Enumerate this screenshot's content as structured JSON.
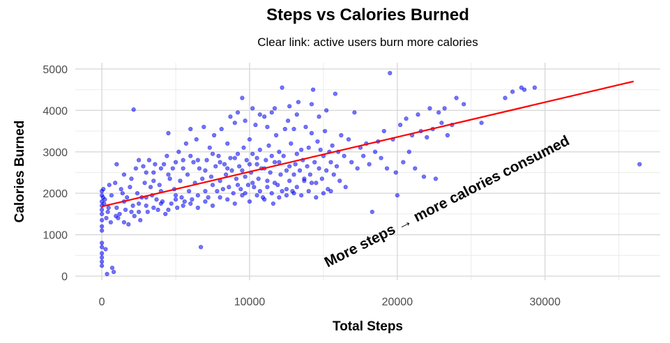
{
  "chart_data": {
    "type": "scatter",
    "title": "Steps vs Calories Burned",
    "subtitle": "Clear link: active users burn more calories",
    "xlabel": "Total Steps",
    "ylabel": "Calories Burned",
    "xlim": [
      -1800,
      37800
    ],
    "ylim": [
      -100,
      5150
    ],
    "x_ticks": [
      0,
      10000,
      20000,
      30000
    ],
    "y_ticks": [
      0,
      1000,
      2000,
      3000,
      4000,
      5000
    ],
    "x_tick_labels": [
      "0",
      "10000",
      "20000",
      "30000"
    ],
    "y_tick_labels": [
      "0",
      "1000",
      "2000",
      "3000",
      "4000",
      "5000"
    ],
    "grid": true,
    "legend": "none",
    "point_color": "#0000ff",
    "trend_color": "#ff0000",
    "trend_line": {
      "type": "linear",
      "points": [
        [
          0,
          1680
        ],
        [
          36000,
          4700
        ]
      ]
    },
    "annotation": {
      "text": "More steps → more calories consumed",
      "x": 23500,
      "y": 1700,
      "angle": -27
    },
    "points": [
      [
        0,
        1800
      ],
      [
        0,
        2050
      ],
      [
        0,
        1950
      ],
      [
        0,
        1700
      ],
      [
        0,
        1600
      ],
      [
        0,
        1500
      ],
      [
        0,
        1350
      ],
      [
        0,
        1200
      ],
      [
        0,
        1100
      ],
      [
        0,
        800
      ],
      [
        0,
        700
      ],
      [
        0,
        550
      ],
      [
        0,
        450
      ],
      [
        0,
        350
      ],
      [
        0,
        250
      ],
      [
        80,
        1900
      ],
      [
        100,
        2100
      ],
      [
        150,
        1750
      ],
      [
        200,
        1850
      ],
      [
        250,
        650
      ],
      [
        300,
        1400
      ],
      [
        400,
        1550
      ],
      [
        500,
        2200
      ],
      [
        450,
        1650
      ],
      [
        350,
        50
      ],
      [
        600,
        1300
      ],
      [
        700,
        200
      ],
      [
        800,
        100
      ],
      [
        650,
        1950
      ],
      [
        900,
        2250
      ],
      [
        950,
        1450
      ],
      [
        1100,
        1400
      ],
      [
        1200,
        1500
      ],
      [
        1300,
        2100
      ],
      [
        1400,
        2000
      ],
      [
        1500,
        1300
      ],
      [
        1600,
        1600
      ],
      [
        1700,
        1900
      ],
      [
        1800,
        1250
      ],
      [
        1900,
        2150
      ],
      [
        2000,
        2350
      ],
      [
        2100,
        1700
      ],
      [
        2200,
        1450
      ],
      [
        2150,
        4020
      ],
      [
        2300,
        2600
      ],
      [
        2400,
        2000
      ],
      [
        2500,
        1550
      ],
      [
        2600,
        1350
      ],
      [
        2700,
        1900
      ],
      [
        2800,
        2650
      ],
      [
        2900,
        2250
      ],
      [
        3000,
        1700
      ],
      [
        3100,
        1550
      ],
      [
        3200,
        2800
      ],
      [
        3300,
        2150
      ],
      [
        3400,
        1950
      ],
      [
        3500,
        2500
      ],
      [
        3600,
        2700
      ],
      [
        3700,
        1850
      ],
      [
        3800,
        1600
      ],
      [
        3900,
        2200
      ],
      [
        4000,
        2050
      ],
      [
        4100,
        1800
      ],
      [
        4200,
        2700
      ],
      [
        4300,
        1500
      ],
      [
        4400,
        2900
      ],
      [
        4500,
        3450
      ],
      [
        4600,
        2350
      ],
      [
        4700,
        1750
      ],
      [
        4800,
        2600
      ],
      [
        4900,
        2100
      ],
      [
        5000,
        1950
      ],
      [
        5100,
        1650
      ],
      [
        5200,
        3000
      ],
      [
        5300,
        2300
      ],
      [
        5400,
        1900
      ],
      [
        5500,
        2800
      ],
      [
        5600,
        1800
      ],
      [
        5700,
        3200
      ],
      [
        5800,
        2450
      ],
      [
        5900,
        2050
      ],
      [
        6000,
        3550
      ],
      [
        6100,
        1850
      ],
      [
        6200,
        2750
      ],
      [
        6300,
        2250
      ],
      [
        6400,
        3300
      ],
      [
        6500,
        1950
      ],
      [
        6600,
        2600
      ],
      [
        6700,
        700
      ],
      [
        6800,
        2350
      ],
      [
        6900,
        3600
      ],
      [
        7000,
        2050
      ],
      [
        7100,
        2800
      ],
      [
        7200,
        1900
      ],
      [
        7300,
        3100
      ],
      [
        7400,
        2400
      ],
      [
        7500,
        2200
      ],
      [
        7600,
        3400
      ],
      [
        7700,
        2650
      ],
      [
        7800,
        2050
      ],
      [
        7900,
        2900
      ],
      [
        8000,
        2300
      ],
      [
        8100,
        3550
      ],
      [
        8200,
        2100
      ],
      [
        8300,
        2700
      ],
      [
        8400,
        2450
      ],
      [
        8500,
        3200
      ],
      [
        8600,
        2150
      ],
      [
        8700,
        2850
      ],
      [
        8800,
        2550
      ],
      [
        8900,
        2000
      ],
      [
        9000,
        3700
      ],
      [
        9100,
        2350
      ],
      [
        9200,
        2950
      ],
      [
        9300,
        2650
      ],
      [
        9400,
        2100
      ],
      [
        9500,
        4300
      ],
      [
        9600,
        3100
      ],
      [
        9700,
        2400
      ],
      [
        9800,
        2800
      ],
      [
        9900,
        2200
      ],
      [
        10000,
        3300
      ],
      [
        10100,
        2500
      ],
      [
        10200,
        2950
      ],
      [
        10300,
        2150
      ],
      [
        10400,
        3650
      ],
      [
        10500,
        2700
      ],
      [
        10600,
        2350
      ],
      [
        10700,
        3050
      ],
      [
        10800,
        2600
      ],
      [
        10900,
        1900
      ],
      [
        11000,
        3850
      ],
      [
        11100,
        2800
      ],
      [
        11200,
        2300
      ],
      [
        11300,
        3150
      ],
      [
        11400,
        2500
      ],
      [
        11500,
        3950
      ],
      [
        11600,
        1750
      ],
      [
        11700,
        2750
      ],
      [
        11800,
        3400
      ],
      [
        11900,
        2200
      ],
      [
        12000,
        3000
      ],
      [
        12100,
        2450
      ],
      [
        12200,
        4550
      ],
      [
        12300,
        2900
      ],
      [
        12400,
        3550
      ],
      [
        12500,
        2100
      ],
      [
        12600,
        3750
      ],
      [
        12700,
        2650
      ],
      [
        12800,
        3200
      ],
      [
        12900,
        2050
      ],
      [
        13000,
        3550
      ],
      [
        13100,
        2700
      ],
      [
        13200,
        2950
      ],
      [
        13300,
        4200
      ],
      [
        13400,
        2550
      ],
      [
        13500,
        3050
      ],
      [
        13600,
        2800
      ],
      [
        13700,
        2300
      ],
      [
        13800,
        3600
      ],
      [
        13900,
        2650
      ],
      [
        14000,
        3100
      ],
      [
        14100,
        2450
      ],
      [
        14200,
        3450
      ],
      [
        14300,
        4500
      ],
      [
        14400,
        2750
      ],
      [
        14500,
        2250
      ],
      [
        14600,
        3250
      ],
      [
        14700,
        2600
      ],
      [
        14800,
        3050
      ],
      [
        14900,
        2350
      ],
      [
        15000,
        2900
      ],
      [
        15100,
        3500
      ],
      [
        15200,
        2550
      ],
      [
        15300,
        2100
      ],
      [
        15400,
        3000
      ],
      [
        15500,
        2750
      ],
      [
        15600,
        3150
      ],
      [
        15700,
        2450
      ],
      [
        15800,
        4400
      ],
      [
        15900,
        2650
      ],
      [
        16000,
        3000
      ],
      [
        16100,
        2300
      ],
      [
        16200,
        3400
      ],
      [
        16400,
        2900
      ],
      [
        16500,
        2150
      ],
      [
        16700,
        3300
      ],
      [
        16900,
        2750
      ],
      [
        17100,
        3950
      ],
      [
        17300,
        2600
      ],
      [
        17500,
        3100
      ],
      [
        17700,
        2900
      ],
      [
        17900,
        3200
      ],
      [
        18100,
        2700
      ],
      [
        18300,
        1550
      ],
      [
        18500,
        3000
      ],
      [
        18700,
        3250
      ],
      [
        18900,
        2850
      ],
      [
        19100,
        3500
      ],
      [
        19300,
        2600
      ],
      [
        19500,
        4900
      ],
      [
        19700,
        3300
      ],
      [
        19900,
        2500
      ],
      [
        20000,
        1950
      ],
      [
        20200,
        3650
      ],
      [
        20400,
        2750
      ],
      [
        20600,
        3800
      ],
      [
        20800,
        3000
      ],
      [
        21000,
        3400
      ],
      [
        21200,
        2600
      ],
      [
        21400,
        3900
      ],
      [
        21600,
        3500
      ],
      [
        21800,
        2400
      ],
      [
        22000,
        3350
      ],
      [
        22200,
        4050
      ],
      [
        22400,
        3550
      ],
      [
        22600,
        2350
      ],
      [
        22800,
        3950
      ],
      [
        23000,
        3700
      ],
      [
        23200,
        4050
      ],
      [
        23400,
        3400
      ],
      [
        23700,
        3650
      ],
      [
        24000,
        4300
      ],
      [
        24500,
        4150
      ],
      [
        25700,
        3700
      ],
      [
        27300,
        4300
      ],
      [
        27800,
        4450
      ],
      [
        28400,
        4550
      ],
      [
        28600,
        4500
      ],
      [
        29300,
        4550
      ],
      [
        36400,
        2700
      ],
      [
        1000,
        2700
      ],
      [
        1500,
        2450
      ],
      [
        2500,
        2800
      ],
      [
        3000,
        2500
      ],
      [
        3500,
        2300
      ],
      [
        4000,
        2600
      ],
      [
        4500,
        2450
      ],
      [
        5000,
        2750
      ],
      [
        5500,
        2600
      ],
      [
        6000,
        2900
      ],
      [
        6500,
        2800
      ],
      [
        7000,
        2550
      ],
      [
        7500,
        2950
      ],
      [
        8000,
        2750
      ],
      [
        8500,
        2600
      ],
      [
        9000,
        2850
      ],
      [
        9500,
        2550
      ],
      [
        10000,
        2700
      ],
      [
        10500,
        2850
      ],
      [
        11000,
        2600
      ],
      [
        11500,
        2900
      ],
      [
        12000,
        2750
      ],
      [
        12500,
        2550
      ],
      [
        13000,
        2450
      ],
      [
        1000,
        1650
      ],
      [
        1500,
        1800
      ],
      [
        2000,
        1550
      ],
      [
        2500,
        1750
      ],
      [
        3000,
        1900
      ],
      [
        3500,
        1650
      ],
      [
        4000,
        1750
      ],
      [
        4500,
        1600
      ],
      [
        5000,
        1850
      ],
      [
        5500,
        1700
      ],
      [
        6000,
        1750
      ],
      [
        6500,
        1650
      ],
      [
        7000,
        1800
      ],
      [
        7500,
        1700
      ],
      [
        8000,
        1900
      ],
      [
        8500,
        1850
      ],
      [
        9000,
        1750
      ],
      [
        9500,
        1950
      ],
      [
        10000,
        1800
      ],
      [
        10500,
        1950
      ],
      [
        11000,
        1850
      ],
      [
        11500,
        2000
      ],
      [
        12000,
        1900
      ],
      [
        12500,
        1950
      ],
      [
        13000,
        2000
      ],
      [
        13500,
        1950
      ],
      [
        14000,
        2050
      ],
      [
        14500,
        1900
      ],
      [
        15000,
        2000
      ],
      [
        15500,
        2050
      ],
      [
        9200,
        2200
      ],
      [
        9700,
        2000
      ],
      [
        10200,
        2250
      ],
      [
        10700,
        2050
      ],
      [
        11200,
        2150
      ],
      [
        11700,
        2250
      ],
      [
        12200,
        2050
      ],
      [
        12700,
        2300
      ],
      [
        13200,
        2150
      ],
      [
        13700,
        2350
      ],
      [
        14200,
        2250
      ],
      [
        8700,
        3850
      ],
      [
        9200,
        3950
      ],
      [
        9700,
        3750
      ],
      [
        10200,
        4050
      ],
      [
        10700,
        3900
      ],
      [
        11200,
        3600
      ],
      [
        11700,
        4050
      ],
      [
        12700,
        4100
      ],
      [
        13200,
        3900
      ],
      [
        14200,
        4150
      ],
      [
        14700,
        3850
      ],
      [
        15200,
        4000
      ]
    ]
  }
}
